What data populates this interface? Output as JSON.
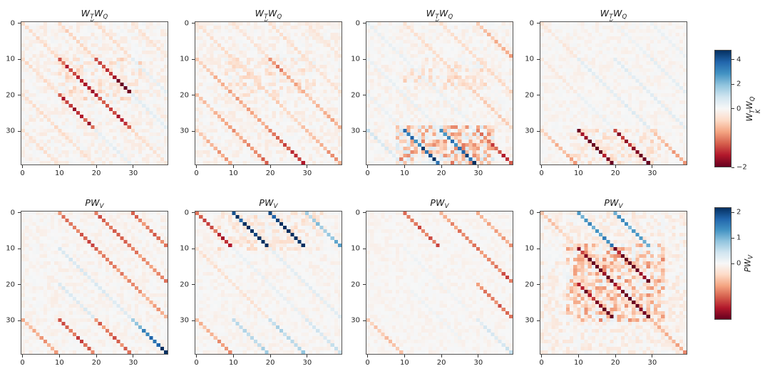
{
  "chart_data": {
    "type": "heatmap",
    "description": "2x4 grid of 40x40 attention-weight matrices with diagonal stripe structure (period-10 induction pattern), diverging RdBu colormap centered at 0",
    "n": 40,
    "axis": {
      "x_tick_values": [
        0,
        10,
        20,
        30
      ],
      "x_tick_labels": [
        "0",
        "10",
        "20",
        "30"
      ],
      "y_tick_values": [
        0,
        10,
        20,
        30
      ],
      "y_tick_labels": [
        "0",
        "10",
        "20",
        "30"
      ]
    },
    "colormap": {
      "name": "RdBu",
      "stops": [
        [
          103,
          0,
          31
        ],
        [
          178,
          24,
          43
        ],
        [
          214,
          96,
          77
        ],
        [
          244,
          165,
          130
        ],
        [
          253,
          219,
          199
        ],
        [
          247,
          247,
          247
        ],
        [
          209,
          229,
          240
        ],
        [
          146,
          197,
          222
        ],
        [
          67,
          147,
          195
        ],
        [
          33,
          102,
          172
        ],
        [
          5,
          48,
          97
        ]
      ]
    },
    "rows": [
      {
        "title": "W_K^T W_Q",
        "title_parts": [
          {
            "t": "W",
            "sup": "T",
            "sub": "K"
          },
          {
            "t": "W",
            "sub": "Q"
          }
        ],
        "norm": {
          "vmin": -2,
          "vcenter": 0,
          "vmax": 4.8
        },
        "colorbar": {
          "label": "W_K^T W_Q",
          "label_parts": [
            {
              "t": "W",
              "sup": "T",
              "sub": "K"
            },
            {
              "t": "W",
              "sub": "Q"
            }
          ],
          "ticks": [
            {
              "value": 4,
              "label": "4"
            },
            {
              "value": 2,
              "label": "2"
            },
            {
              "value": 0,
              "label": "0"
            },
            {
              "value": -2,
              "label": "−2"
            }
          ]
        },
        "panels": [
          {
            "noise": {
              "amp": 0.18,
              "bias": -0.03,
              "seed": 11
            },
            "regions": [
              {
                "r0": 10,
                "r1": 22,
                "c0": 10,
                "c1": 32,
                "amp": 0.28,
                "bias": -0.06
              }
            ],
            "stripes": [
              [
                10,
                0,
                9,
                -0.45,
                -0.4
              ],
              [
                20,
                0,
                9,
                -0.4,
                -0.3
              ],
              [
                30,
                0,
                9,
                -0.3,
                -0.25
              ],
              [
                -10,
                0,
                19,
                -0.4,
                -0.35
              ],
              [
                -20,
                20,
                39,
                -0.4,
                -0.3
              ],
              [
                -30,
                30,
                39,
                -0.35,
                -0.3
              ],
              [
                0,
                0,
                9,
                -0.4,
                -0.35
              ],
              [
                0,
                30,
                39,
                -0.4,
                -0.25
              ],
              [
                20,
                10,
                19,
                0.45,
                0.4
              ],
              [
                10,
                20,
                29,
                0.5,
                0.45
              ],
              [
                -10,
                30,
                39,
                0.4,
                0.45
              ],
              [
                0,
                10,
                29,
                -1.35,
                -1.5
              ],
              [
                10,
                10,
                19,
                -1.45,
                -1.9
              ],
              [
                -10,
                20,
                29,
                -1.5,
                -1.4
              ]
            ]
          },
          {
            "noise": {
              "amp": 0.17,
              "bias": -0.035,
              "seed": 22
            },
            "regions": [
              {
                "r0": 10,
                "r1": 20,
                "c0": 8,
                "c1": 32,
                "amp": 0.26,
                "bias": -0.07
              }
            ],
            "stripes": [
              [
                0,
                0,
                29,
                -0.3,
                -0.5
              ],
              [
                0,
                30,
                39,
                -0.6,
                -0.85
              ],
              [
                -10,
                10,
                29,
                -0.55,
                -0.85
              ],
              [
                -10,
                30,
                39,
                -1.05,
                -1.4
              ],
              [
                -20,
                20,
                29,
                -0.5,
                -0.7
              ],
              [
                -20,
                30,
                39,
                -0.8,
                -1.15
              ],
              [
                -30,
                30,
                39,
                -0.55,
                -0.9
              ],
              [
                10,
                0,
                9,
                -0.3,
                -0.3
              ],
              [
                10,
                10,
                19,
                -0.95,
                -0.65
              ],
              [
                10,
                20,
                29,
                -0.6,
                -0.75
              ],
              [
                20,
                0,
                19,
                -0.35,
                -0.3
              ],
              [
                20,
                20,
                29,
                0.35,
                0.3
              ],
              [
                30,
                0,
                9,
                -0.3,
                -0.25
              ]
            ]
          },
          {
            "noise": {
              "amp": 0.16,
              "bias": -0.02,
              "seed": 33
            },
            "regions": [
              {
                "r0": 29,
                "r1": 39,
                "c0": 8,
                "c1": 34,
                "amp": 0.85,
                "bias": -0.1
              },
              {
                "r0": 10,
                "r1": 18,
                "c0": 10,
                "c1": 32,
                "amp": 0.28,
                "bias": -0.09
              }
            ],
            "stripes": [
              [
                10,
                0,
                29,
                -0.3,
                -0.5
              ],
              [
                20,
                0,
                19,
                -0.32,
                -0.38
              ],
              [
                30,
                0,
                9,
                -0.55,
                -0.7
              ],
              [
                0,
                0,
                27,
                0.35,
                0.3
              ],
              [
                -10,
                10,
                29,
                0.3,
                0.35
              ],
              [
                -20,
                20,
                29,
                0.3,
                0.3
              ],
              [
                -30,
                30,
                39,
                0.95,
                0.5
              ],
              [
                0,
                30,
                39,
                -1.0,
                -1.55
              ],
              [
                -20,
                30,
                39,
                3.2,
                4.6
              ],
              [
                -10,
                30,
                39,
                3.0,
                4.5
              ]
            ]
          },
          {
            "noise": {
              "amp": 0.12,
              "bias": -0.02,
              "seed": 44
            },
            "regions": [
              {
                "r0": 30,
                "r1": 39,
                "c0": 8,
                "c1": 32,
                "amp": 0.3,
                "bias": -0.08
              }
            ],
            "stripes": [
              [
                0,
                0,
                9,
                -0.25,
                -0.2
              ],
              [
                20,
                0,
                9,
                0.25,
                0.3
              ],
              [
                30,
                0,
                9,
                0.3,
                0.3
              ],
              [
                0,
                10,
                29,
                0.55,
                0.6
              ],
              [
                10,
                10,
                29,
                0.55,
                0.5
              ],
              [
                20,
                10,
                19,
                0.45,
                0.4
              ],
              [
                -10,
                10,
                19,
                -0.22,
                -0.18
              ],
              [
                -10,
                20,
                29,
                0.3,
                0.3
              ],
              [
                -30,
                30,
                39,
                -0.5,
                -0.85
              ],
              [
                0,
                30,
                39,
                -0.55,
                -0.85
              ],
              [
                -20,
                30,
                39,
                -1.7,
                -2.0
              ],
              [
                -10,
                30,
                39,
                -1.6,
                -1.95
              ]
            ]
          }
        ]
      },
      {
        "title": "PW_V",
        "title_parts": [
          {
            "t": "P"
          },
          {
            "t": "W",
            "sub": "V"
          }
        ],
        "norm": {
          "vmin": -0.9,
          "vcenter": 0,
          "vmax": 2.2
        },
        "colorbar": {
          "label": "PW_V",
          "label_parts": [
            {
              "t": "P"
            },
            {
              "t": "W",
              "sub": "V"
            }
          ],
          "ticks": [
            {
              "value": 2,
              "label": "2"
            },
            {
              "value": 1,
              "label": "1"
            },
            {
              "value": 0,
              "label": "0"
            }
          ]
        },
        "panels": [
          {
            "noise": {
              "amp": 0.06,
              "bias": -0.012,
              "seed": 55
            },
            "regions": [],
            "stripes": [
              [
                10,
                0,
                9,
                -0.5,
                -0.55
              ],
              [
                10,
                10,
                29,
                -0.45,
                -0.33
              ],
              [
                20,
                0,
                19,
                -0.5,
                -0.4
              ],
              [
                30,
                0,
                9,
                -0.45,
                -0.5
              ],
              [
                0,
                10,
                29,
                0.38,
                0.24
              ],
              [
                -10,
                20,
                29,
                0.32,
                0.28
              ],
              [
                -10,
                30,
                39,
                -0.45,
                -0.5
              ],
              [
                -20,
                30,
                39,
                -0.5,
                -0.55
              ],
              [
                -30,
                30,
                39,
                -0.28,
                -0.4
              ],
              [
                0,
                30,
                39,
                0.85,
                2.3
              ]
            ]
          },
          {
            "noise": {
              "amp": 0.055,
              "bias": -0.01,
              "seed": 66
            },
            "regions": [
              {
                "r0": 0,
                "r1": 10,
                "c0": 6,
                "c1": 34,
                "amp": 0.12,
                "bias": -0.03
              }
            ],
            "stripes": [
              [
                0,
                0,
                9,
                -0.45,
                -0.72
              ],
              [
                30,
                0,
                9,
                0.65,
                1.15
              ],
              [
                10,
                0,
                9,
                2.1,
                2.45
              ],
              [
                20,
                0,
                9,
                2.1,
                2.45
              ],
              [
                0,
                10,
                29,
                0.16,
                0.14
              ],
              [
                10,
                10,
                29,
                0.22,
                0.26
              ],
              [
                -10,
                10,
                29,
                -0.14,
                -0.12
              ],
              [
                -20,
                30,
                39,
                0.55,
                0.66
              ],
              [
                -10,
                30,
                39,
                0.6,
                0.72
              ],
              [
                0,
                30,
                39,
                0.34,
                0.46
              ],
              [
                -30,
                30,
                39,
                -0.28,
                -0.4
              ]
            ]
          },
          {
            "noise": {
              "amp": 0.045,
              "bias": -0.012,
              "seed": 77
            },
            "regions": [],
            "stripes": [
              [
                10,
                0,
                9,
                -0.45,
                -0.58
              ],
              [
                20,
                0,
                9,
                -0.38,
                -0.45
              ],
              [
                30,
                0,
                9,
                -0.28,
                -0.35
              ],
              [
                20,
                10,
                19,
                -0.45,
                -0.52
              ],
              [
                10,
                20,
                29,
                -0.4,
                -0.52
              ],
              [
                0,
                30,
                39,
                0.28,
                0.45
              ],
              [
                -30,
                30,
                39,
                -0.24,
                -0.3
              ],
              [
                0,
                10,
                27,
                0.1,
                0.09
              ],
              [
                -10,
                22,
                35,
                0.09,
                0.1
              ]
            ]
          },
          {
            "noise": {
              "amp": 0.1,
              "bias": -0.025,
              "seed": 88
            },
            "regions": [
              {
                "r0": 9,
                "r1": 30,
                "c0": 7,
                "c1": 33,
                "amp": 0.26,
                "bias": -0.09
              }
            ],
            "stripes": [
              [
                0,
                0,
                9,
                -0.25,
                -0.2
              ],
              [
                10,
                0,
                9,
                1.15,
                1.35
              ],
              [
                20,
                0,
                9,
                1.15,
                1.35
              ],
              [
                0,
                10,
                19,
                -0.78,
                -0.9
              ],
              [
                10,
                10,
                19,
                -0.78,
                -0.92
              ],
              [
                -10,
                20,
                29,
                -0.7,
                -0.88
              ],
              [
                0,
                20,
                29,
                -0.78,
                -0.92
              ],
              [
                0,
                30,
                39,
                -0.28,
                -0.38
              ]
            ]
          }
        ]
      }
    ]
  }
}
